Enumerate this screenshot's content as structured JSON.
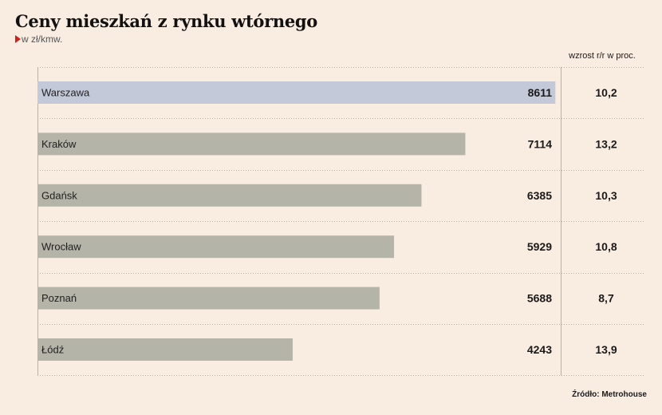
{
  "chart_data": {
    "type": "bar",
    "orientation": "horizontal",
    "title": "Ceny mieszkań z rynku wtórnego",
    "subtitle": "w zł/kmw.",
    "categories": [
      "Warszawa",
      "Kraków",
      "Gdańsk",
      "Wrocław",
      "Poznań",
      "Łódź"
    ],
    "values": [
      8611,
      7114,
      6385,
      5929,
      5688,
      4243
    ],
    "value_labels": [
      "8611",
      "7114",
      "6385",
      "5929",
      "5688",
      "4243"
    ],
    "highlight_index": 0,
    "growth_header": "wzrost r/r w proc.",
    "growth": [
      "10,2",
      "13,2",
      "10,3",
      "10,8",
      "8,7",
      "13,9"
    ],
    "xlim": [
      0,
      8700
    ],
    "grid": false,
    "source": "Źródło: Metrohouse"
  },
  "colors": {
    "background": "#f9ede1",
    "bar": "#b5b4a8",
    "bar_highlight": "#c3c9d8",
    "separator": "#b9b0a6",
    "accent": "#d21e1e"
  }
}
